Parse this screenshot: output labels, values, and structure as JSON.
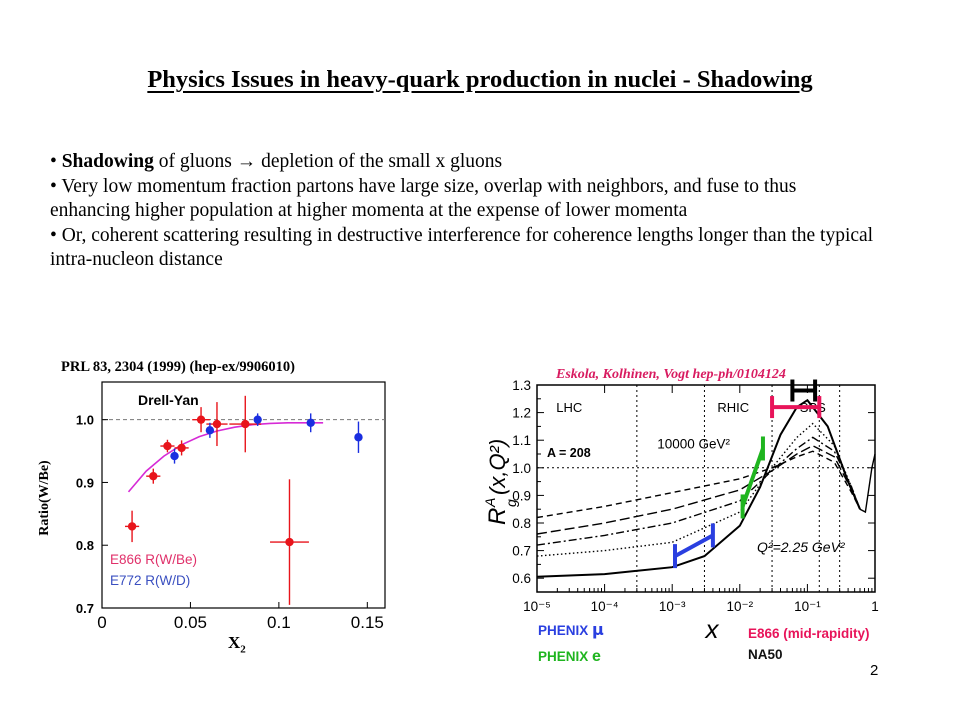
{
  "title": "Physics Issues in heavy-quark production in nuclei - Shadowing",
  "bullets": [
    {
      "bold": "Shadowing",
      "text": " of gluons → depletion of the small x gluons"
    },
    {
      "bold": "",
      "text": "Very low momentum fraction partons have large size, overlap with neighbors, and fuse to thus enhancing higher population at higher momenta at the expense of lower momenta"
    },
    {
      "bold": "",
      "text": "Or, coherent scattering resulting in destructive interference for coherence lengths longer than the typical intra-nucleon distance"
    }
  ],
  "left_plot": {
    "reference": "PRL 83, 2304 (1999) (hep-ex/9906010)",
    "process": "Drell-Yan",
    "ylabel": "Ratio(W/Be)",
    "xlabel": "X",
    "xlabel_sub": "2",
    "legend_e866": "E866 R(W/Be)",
    "legend_e772": "E772 R(W/D)",
    "xticks": [
      "0",
      "0.05",
      "0.1",
      "0.15"
    ],
    "yticks": [
      "0.7",
      "0.8",
      "0.9",
      "1.0"
    ],
    "colors": {
      "e866": "#e8141b",
      "e772": "#1a2ee0",
      "fit": "#d62ad6",
      "legend_red": "#e0306a",
      "legend_blue": "#3a4fc0"
    }
  },
  "right_plot": {
    "reference": "Eskola, Kolhinen, Vogt hep-ph/0104124",
    "regions": [
      "LHC",
      "RHIC",
      "SPS"
    ],
    "a_label": "A = 208",
    "q2_high": "10000 GeV²",
    "q2_low": "Q²=2.25 GeV²",
    "ylabel": "R",
    "ylabel_sub": "g",
    "ylabel_sup": "A",
    "ylabel_args": "(x,Q²)",
    "xlabel": "x",
    "yticks": [
      "0.6",
      "0.7",
      "0.8",
      "0.9",
      "1.0",
      "1.1",
      "1.2",
      "1.3"
    ],
    "xticks": [
      "10⁻⁵",
      "10⁻⁴",
      "10⁻³",
      "10⁻²",
      "10⁻¹",
      "1"
    ],
    "colors": {
      "phenix_mu": "#2a3fe0",
      "phenix_e": "#1fb51f",
      "e866": "#e8145a",
      "na50": "#000000",
      "ref": "#d81b60"
    }
  },
  "chart_data": [
    {
      "type": "scatter",
      "title": "Drell-Yan",
      "xlabel": "X2",
      "ylabel": "Ratio(W/Be)",
      "xlim": [
        0,
        0.16
      ],
      "ylim": [
        0.7,
        1.06
      ],
      "series": [
        {
          "name": "E866 R(W/Be)",
          "points": [
            {
              "x": 0.017,
              "y": 0.83,
              "xerr": 0.004,
              "yerr": 0.025
            },
            {
              "x": 0.029,
              "y": 0.91,
              "xerr": 0.004,
              "yerr": 0.012
            },
            {
              "x": 0.037,
              "y": 0.958,
              "xerr": 0.004,
              "yerr": 0.01
            },
            {
              "x": 0.045,
              "y": 0.955,
              "xerr": 0.004,
              "yerr": 0.012
            },
            {
              "x": 0.056,
              "y": 1.0,
              "xerr": 0.005,
              "yerr": 0.02
            },
            {
              "x": 0.065,
              "y": 0.993,
              "xerr": 0.006,
              "yerr": 0.035
            },
            {
              "x": 0.081,
              "y": 0.993,
              "xerr": 0.009,
              "yerr": 0.045
            },
            {
              "x": 0.106,
              "y": 0.805,
              "xerr": 0.011,
              "yerr": 0.1
            }
          ]
        },
        {
          "name": "E772 R(W/D)",
          "points": [
            {
              "x": 0.041,
              "y": 0.942,
              "xerr": 0.002,
              "yerr": 0.012
            },
            {
              "x": 0.061,
              "y": 0.983,
              "xerr": 0.002,
              "yerr": 0.012
            },
            {
              "x": 0.088,
              "y": 1.0,
              "xerr": 0.002,
              "yerr": 0.01
            },
            {
              "x": 0.118,
              "y": 0.995,
              "xerr": 0.002,
              "yerr": 0.015
            },
            {
              "x": 0.145,
              "y": 0.972,
              "xerr": 0.002,
              "yerr": 0.025
            }
          ]
        }
      ],
      "fit_curve": {
        "x": [
          0.015,
          0.025,
          0.035,
          0.045,
          0.055,
          0.065,
          0.075,
          0.085,
          0.095,
          0.105,
          0.115,
          0.125
        ],
        "y": [
          0.885,
          0.918,
          0.942,
          0.96,
          0.973,
          0.982,
          0.988,
          0.992,
          0.994,
          0.995,
          0.995,
          0.995
        ]
      },
      "reference_line": 1.0
    },
    {
      "type": "line",
      "title": "",
      "xlabel": "x",
      "ylabel": "R_g^A(x,Q^2)",
      "xscale": "log",
      "xlim": [
        1e-05,
        1
      ],
      "ylim": [
        0.55,
        1.3
      ],
      "curves": [
        {
          "label": "Q²=2.25 GeV²",
          "style": "solid",
          "points": [
            [
              1e-05,
              0.605
            ],
            [
              0.0001,
              0.615
            ],
            [
              0.001,
              0.64
            ],
            [
              0.003,
              0.68
            ],
            [
              0.01,
              0.79
            ],
            [
              0.02,
              0.93
            ],
            [
              0.04,
              1.12
            ],
            [
              0.07,
              1.22
            ],
            [
              0.1,
              1.245
            ],
            [
              0.2,
              1.15
            ],
            [
              0.4,
              0.95
            ],
            [
              0.6,
              0.85
            ]
          ]
        },
        {
          "style": "dotted",
          "points": [
            [
              1e-05,
              0.68
            ],
            [
              0.0001,
              0.7
            ],
            [
              0.001,
              0.73
            ],
            [
              0.01,
              0.84
            ],
            [
              0.03,
              1.0
            ],
            [
              0.07,
              1.11
            ],
            [
              0.12,
              1.16
            ],
            [
              0.25,
              1.08
            ],
            [
              0.45,
              0.93
            ],
            [
              0.6,
              0.85
            ]
          ]
        },
        {
          "style": "dashdot",
          "points": [
            [
              1e-05,
              0.72
            ],
            [
              0.0001,
              0.755
            ],
            [
              0.001,
              0.8
            ],
            [
              0.01,
              0.88
            ],
            [
              0.03,
              0.99
            ],
            [
              0.07,
              1.07
            ],
            [
              0.12,
              1.11
            ],
            [
              0.25,
              1.06
            ],
            [
              0.45,
              0.93
            ],
            [
              0.6,
              0.85
            ]
          ]
        },
        {
          "style": "longdash",
          "points": [
            [
              1e-05,
              0.76
            ],
            [
              0.0001,
              0.8
            ],
            [
              0.001,
              0.85
            ],
            [
              0.01,
              0.92
            ],
            [
              0.03,
              0.99
            ],
            [
              0.07,
              1.05
            ],
            [
              0.12,
              1.08
            ],
            [
              0.25,
              1.04
            ],
            [
              0.45,
              0.92
            ],
            [
              0.6,
              0.85
            ]
          ]
        },
        {
          "label": "10000 GeV²",
          "style": "dashed",
          "points": [
            [
              1e-05,
              0.82
            ],
            [
              0.0001,
              0.86
            ],
            [
              0.001,
              0.91
            ],
            [
              0.01,
              0.96
            ],
            [
              0.03,
              1.0
            ],
            [
              0.07,
              1.04
            ],
            [
              0.12,
              1.06
            ],
            [
              0.25,
              1.02
            ],
            [
              0.45,
              0.91
            ],
            [
              0.6,
              0.85
            ]
          ]
        }
      ],
      "coverage_bars": [
        {
          "name": "PHENIX μ",
          "x_range": [
            0.0011,
            0.004
          ],
          "y_range": [
            0.68,
            0.755
          ]
        },
        {
          "name": "PHENIX e",
          "x_range": [
            0.011,
            0.022
          ],
          "y_range": [
            0.86,
            1.07
          ]
        },
        {
          "name": "E866 (mid-rapidity)",
          "x_range": [
            0.03,
            0.15
          ],
          "y": 1.22
        },
        {
          "name": "NA50",
          "x_range": [
            0.06,
            0.13
          ],
          "y": 1.28
        }
      ],
      "region_lines": [
        0.0003,
        0.003,
        0.03
      ]
    }
  ],
  "page_number": "2"
}
